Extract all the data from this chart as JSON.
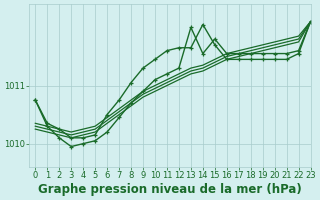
{
  "title": "Graphe pression niveau de la mer (hPa)",
  "bg_color": "#d4efef",
  "grid_color": "#a8cccc",
  "line_color": "#1a6b2a",
  "text_color": "#1a6b2a",
  "xlim": [
    -0.5,
    23
  ],
  "ylim": [
    1009.6,
    1012.4
  ],
  "yticks": [
    1010,
    1011
  ],
  "xticks": [
    0,
    1,
    2,
    3,
    4,
    5,
    6,
    7,
    8,
    9,
    10,
    11,
    12,
    13,
    14,
    15,
    16,
    17,
    18,
    19,
    20,
    21,
    22,
    23
  ],
  "series": [
    {
      "y": [
        1010.75,
        1010.35,
        1010.25,
        1010.1,
        1010.1,
        1010.15,
        1010.5,
        1010.75,
        1011.05,
        1011.3,
        1011.45,
        1011.6,
        1011.65,
        1011.65,
        1012.05,
        1011.7,
        1011.45,
        1011.45,
        1011.45,
        1011.45,
        1011.45,
        1011.45,
        1011.55,
        1012.1
      ],
      "marker": true,
      "linewidth": 1.0
    },
    {
      "y": [
        1010.35,
        1010.3,
        1010.25,
        1010.2,
        1010.25,
        1010.3,
        1010.45,
        1010.6,
        1010.75,
        1010.9,
        1011.0,
        1011.1,
        1011.2,
        1011.3,
        1011.35,
        1011.45,
        1011.55,
        1011.6,
        1011.65,
        1011.7,
        1011.75,
        1011.8,
        1011.85,
        1012.1
      ],
      "marker": false,
      "linewidth": 0.9
    },
    {
      "y": [
        1010.3,
        1010.25,
        1010.2,
        1010.15,
        1010.2,
        1010.25,
        1010.4,
        1010.55,
        1010.7,
        1010.85,
        1010.95,
        1011.05,
        1011.15,
        1011.25,
        1011.3,
        1011.4,
        1011.5,
        1011.55,
        1011.6,
        1011.65,
        1011.7,
        1011.75,
        1011.8,
        1012.1
      ],
      "marker": false,
      "linewidth": 0.9
    },
    {
      "y": [
        1010.25,
        1010.2,
        1010.15,
        1010.1,
        1010.15,
        1010.2,
        1010.35,
        1010.5,
        1010.65,
        1010.8,
        1010.9,
        1011.0,
        1011.1,
        1011.2,
        1011.25,
        1011.35,
        1011.45,
        1011.5,
        1011.55,
        1011.6,
        1011.65,
        1011.7,
        1011.75,
        1012.1
      ],
      "marker": false,
      "linewidth": 0.9
    },
    {
      "y": [
        1010.75,
        1010.3,
        1010.1,
        1009.95,
        1010.0,
        1010.05,
        1010.2,
        1010.45,
        1010.7,
        1010.9,
        1011.1,
        1011.2,
        1011.3,
        1012.0,
        1011.55,
        1011.8,
        1011.55,
        1011.55,
        1011.55,
        1011.55,
        1011.55,
        1011.55,
        1011.6,
        1012.1
      ],
      "marker": true,
      "linewidth": 1.0
    }
  ],
  "title_fontsize": 8.5,
  "tick_fontsize": 6.0
}
